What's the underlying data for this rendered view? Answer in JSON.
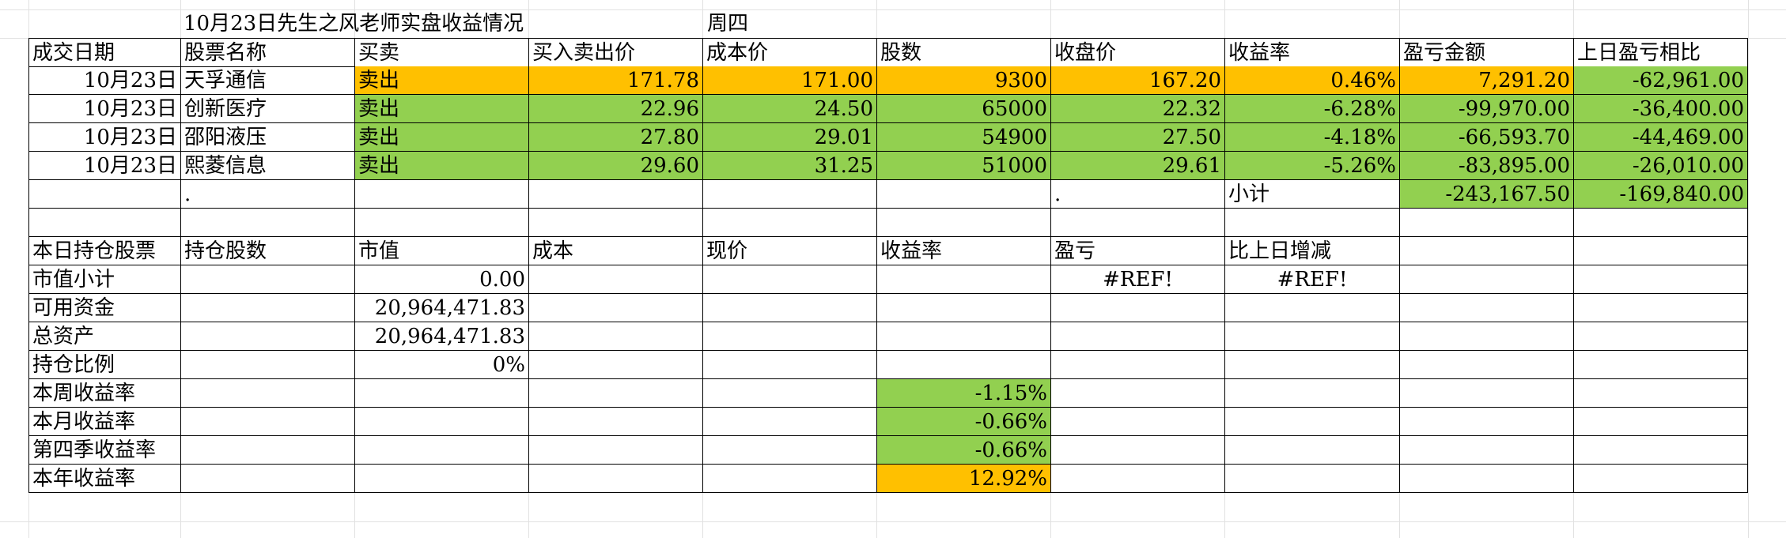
{
  "sheet": {
    "title": "10月23日先生之风老师实盘收益情况",
    "weekday": "周四"
  },
  "trade_headers": [
    "成交日期",
    "股票名称",
    "买卖",
    "买入卖出价",
    "成本价",
    "股数",
    "收盘价",
    "收益率",
    "盈亏金额",
    "上日盈亏相比"
  ],
  "trades": [
    {
      "date": "10月23日",
      "name": "天孚通信",
      "side": "卖出",
      "price": "171.78",
      "cost": "171.00",
      "shares": "9300",
      "close": "167.20",
      "rate": "0.46%",
      "pnl": "7,291.20",
      "prev": "-62,961.00"
    },
    {
      "date": "10月23日",
      "name": "创新医疗",
      "side": "卖出",
      "price": "22.96",
      "cost": "24.50",
      "shares": "65000",
      "close": "22.32",
      "rate": "-6.28%",
      "pnl": "-99,970.00",
      "prev": "-36,400.00"
    },
    {
      "date": "10月23日",
      "name": "邵阳液压",
      "side": "卖出",
      "price": "27.80",
      "cost": "29.01",
      "shares": "54900",
      "close": "27.50",
      "rate": "-4.18%",
      "pnl": "-66,593.70",
      "prev": "-44,469.00"
    },
    {
      "date": "10月23日",
      "name": "熙菱信息",
      "side": "卖出",
      "price": "29.60",
      "cost": "31.25",
      "shares": "51000",
      "close": "29.61",
      "rate": "-5.26%",
      "pnl": "-83,895.00",
      "prev": "-26,010.00"
    }
  ],
  "subtotal": {
    "dot1": ".",
    "dot2": ".",
    "label": "小计",
    "pnl": "-243,167.50",
    "prev": "-169,840.00"
  },
  "holding_headers": [
    "本日持仓股票",
    "持仓股数",
    "市值",
    "成本",
    "现价",
    "收益率",
    "盈亏",
    "比上日增减"
  ],
  "summary": {
    "market_value_label": "市值小计",
    "market_value": "0.00",
    "pnl_ref": "#REF!",
    "change_ref": "#REF!",
    "available_label": "可用资金",
    "available": "20,964,471.83",
    "total_label": "总资产",
    "total": "20,964,471.83",
    "ratio_label": "持仓比例",
    "ratio": "0%",
    "week_label": "本周收益率",
    "week": "-1.15%",
    "month_label": "本月收益率",
    "month": "-0.66%",
    "quarter_label": "第四季收益率",
    "quarter": "-0.66%",
    "year_label": "本年收益率",
    "year": "12.92%"
  },
  "colors": {
    "green": "#92d050",
    "orange": "#ffc000"
  }
}
